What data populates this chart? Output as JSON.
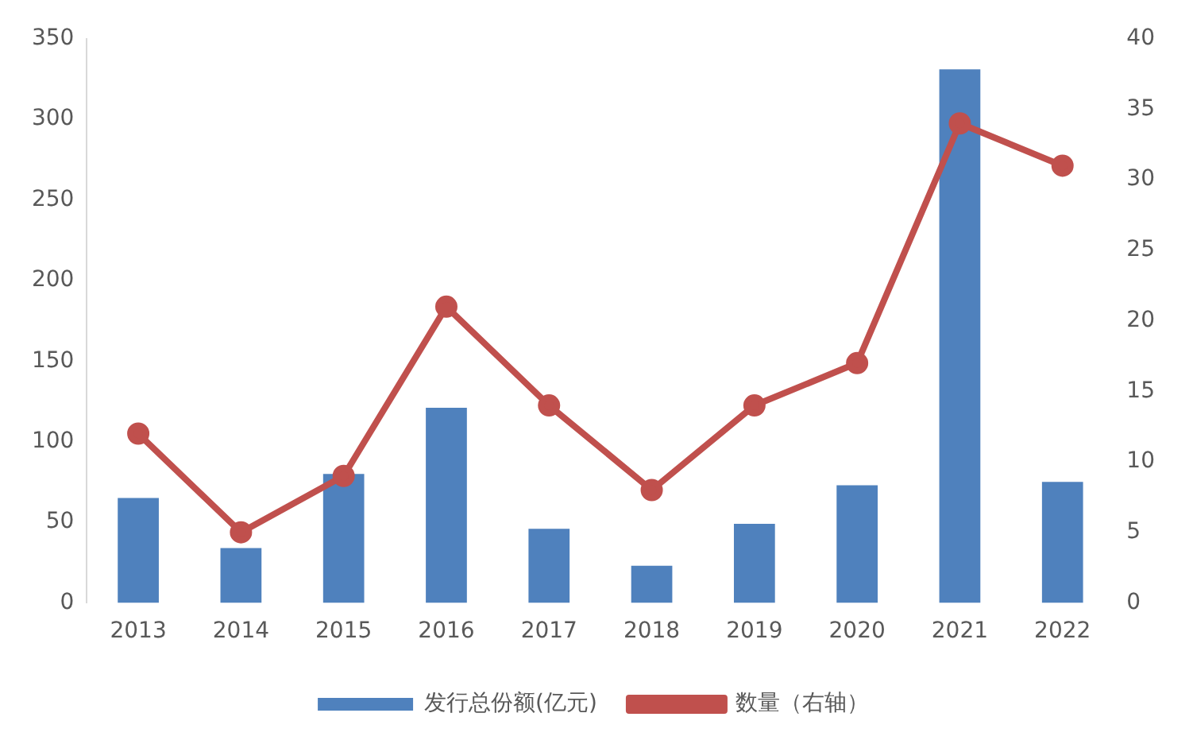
{
  "chart_data": {
    "type": "bar",
    "categories": [
      "2013",
      "2014",
      "2015",
      "2016",
      "2017",
      "2018",
      "2019",
      "2020",
      "2021",
      "2022"
    ],
    "series": [
      {
        "name": "发行总份额(亿元)",
        "color": "#4f81bd",
        "values": [
          65,
          34,
          80,
          121,
          46,
          23,
          49,
          73,
          331,
          75
        ]
      },
      {
        "name": "数量（右轴）",
        "type": "line",
        "axis": "y2",
        "color": "#c0504d",
        "marker": "circle",
        "line_style": "solid",
        "values": [
          12,
          5,
          9,
          21,
          14,
          8,
          14,
          17,
          34,
          31
        ]
      }
    ],
    "ylim": [
      0,
      350
    ],
    "yticks": [
      0,
      50,
      100,
      150,
      200,
      250,
      300,
      350
    ],
    "y2lim": [
      0,
      40
    ],
    "y2ticks": [
      0,
      5,
      10,
      15,
      20,
      25,
      30,
      35,
      40
    ],
    "legend": "bottom",
    "grid": false
  }
}
